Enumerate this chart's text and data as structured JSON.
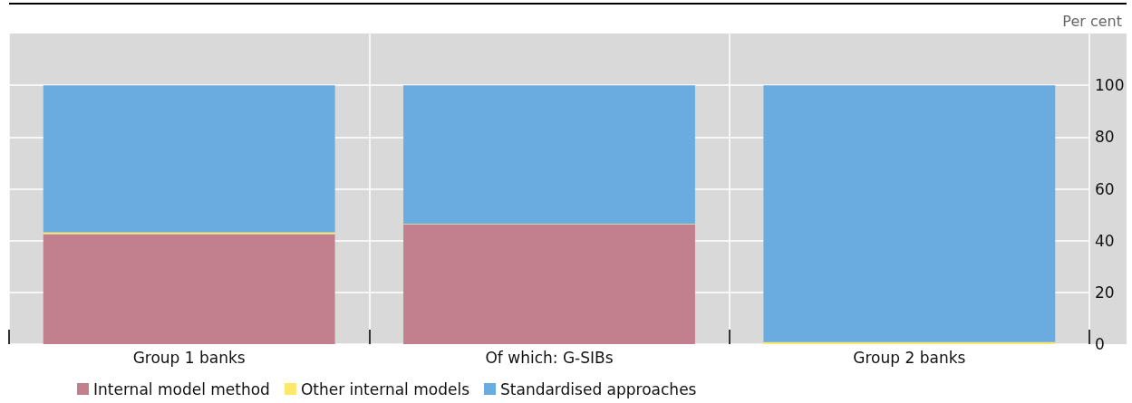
{
  "chart_data": {
    "type": "bar",
    "ylabel": "Per cent",
    "categories": [
      "Group 1 banks",
      "Of which: G-SIBs",
      "Group 2 banks"
    ],
    "stacked": true,
    "series": [
      {
        "name": "Internal model method",
        "color": "#c27f8d",
        "values": [
          42.5,
          46.2,
          0
        ]
      },
      {
        "name": "Other internal models",
        "color": "#fce96a",
        "values": [
          0.7,
          0.2,
          0.8
        ]
      },
      {
        "name": "Standardised approaches",
        "color": "#6aace0",
        "values": [
          56.8,
          53.6,
          99.2
        ]
      }
    ],
    "ylim": [
      0,
      120
    ],
    "yticks": [
      0,
      20,
      40,
      60,
      80,
      100
    ],
    "grid": true,
    "legend": "bottom"
  }
}
